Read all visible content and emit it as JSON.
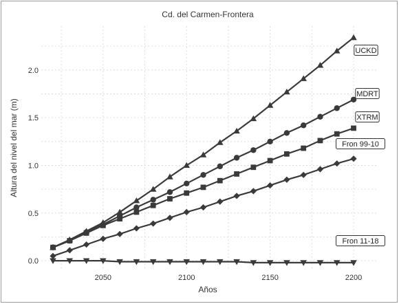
{
  "chart_data": {
    "type": "line",
    "title": "Cd. del Carmen-Frontera",
    "xlabel": "Años",
    "ylabel": "Altura del nivel del mar (m)",
    "xlim": [
      2013,
      2214
    ],
    "ylim": [
      -0.1,
      2.46
    ],
    "xticks": [
      2050,
      2100,
      2150,
      2200
    ],
    "xtick_labels": [
      "2050",
      "2100",
      "2150",
      "2200"
    ],
    "yticks": [
      0.0,
      0.5,
      1.0,
      1.5,
      2.0
    ],
    "ytick_labels": [
      "0.0",
      "0.5",
      "1.0",
      "1.5",
      "2.0"
    ],
    "grid": true,
    "legend": "labels at line ends (right)",
    "x": [
      2020,
      2030,
      2040,
      2050,
      2060,
      2070,
      2080,
      2090,
      2100,
      2110,
      2120,
      2130,
      2140,
      2150,
      2160,
      2170,
      2180,
      2190,
      2200
    ],
    "series": [
      {
        "name": "UCKD",
        "marker": "triangle-up",
        "values": [
          0.14,
          0.22,
          0.31,
          0.4,
          0.51,
          0.63,
          0.75,
          0.88,
          1.0,
          1.11,
          1.24,
          1.36,
          1.49,
          1.63,
          1.77,
          1.91,
          2.05,
          2.2,
          2.34
        ]
      },
      {
        "name": "MDRT",
        "marker": "circle",
        "values": [
          0.14,
          0.21,
          0.3,
          0.38,
          0.47,
          0.56,
          0.64,
          0.72,
          0.81,
          0.9,
          0.99,
          1.08,
          1.16,
          1.25,
          1.34,
          1.42,
          1.51,
          1.6,
          1.69
        ]
      },
      {
        "name": "XTRM",
        "marker": "square",
        "values": [
          0.14,
          0.21,
          0.29,
          0.37,
          0.44,
          0.51,
          0.58,
          0.65,
          0.71,
          0.77,
          0.84,
          0.91,
          0.98,
          1.05,
          1.12,
          1.18,
          1.26,
          1.33,
          1.39
        ]
      },
      {
        "name": "Fron 99-10",
        "marker": "diamond",
        "values": [
          0.05,
          0.11,
          0.17,
          0.23,
          0.28,
          0.34,
          0.39,
          0.45,
          0.51,
          0.56,
          0.62,
          0.68,
          0.73,
          0.79,
          0.85,
          0.9,
          0.96,
          1.02,
          1.07
        ]
      },
      {
        "name": "Fron 11-18",
        "marker": "triangle-down",
        "values": [
          0.0,
          0.0,
          0.0,
          0.0,
          -0.01,
          -0.01,
          -0.01,
          -0.01,
          -0.01,
          -0.01,
          -0.01,
          -0.01,
          -0.02,
          -0.02,
          -0.02,
          -0.02,
          -0.02,
          -0.02,
          -0.02
        ]
      }
    ],
    "colors": {
      "line": "#3a3a3a",
      "grid": "#d4d4d4",
      "frame": "#9a9a9a"
    }
  }
}
